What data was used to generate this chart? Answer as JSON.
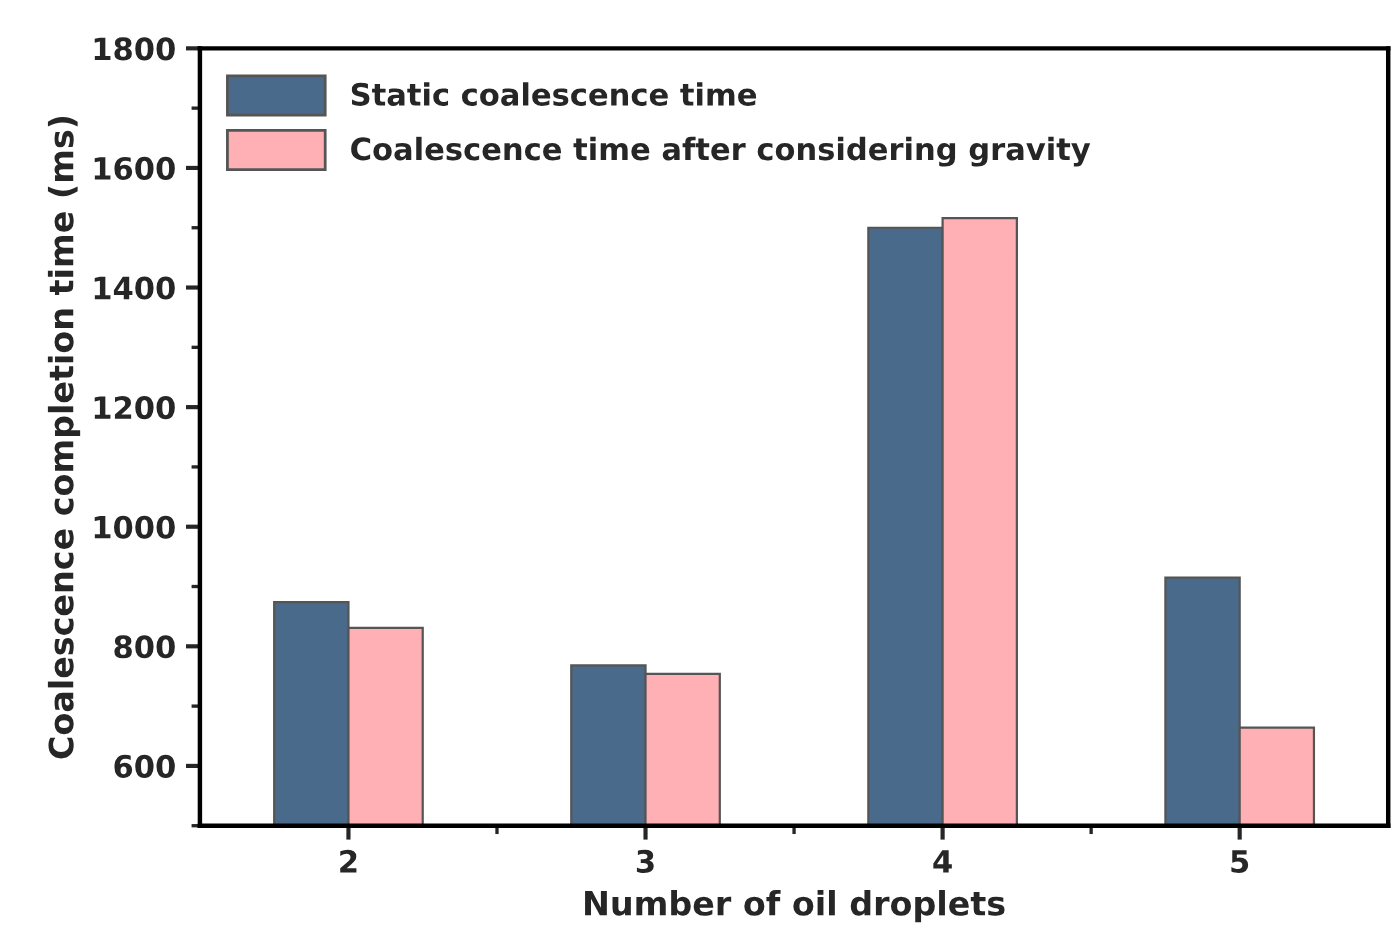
{
  "chart_data": {
    "type": "bar",
    "xlabel": "Number of oil droplets",
    "ylabel": "Coalescence completion time (ms)",
    "categories": [
      "2",
      "3",
      "4",
      "5"
    ],
    "series": [
      {
        "name": "Static coalescence time",
        "color": "#4a6a8c",
        "values": [
          874,
          768,
          1500,
          915
        ]
      },
      {
        "name": "Coalescence time after considering gravity",
        "color": "#ffb0b4",
        "values": [
          831,
          754,
          1516,
          664
        ]
      }
    ],
    "ylim": [
      500,
      1800
    ],
    "yticks": [
      600,
      800,
      1000,
      1200,
      1400,
      1600,
      1800
    ],
    "grid": false,
    "legend": "top left"
  }
}
